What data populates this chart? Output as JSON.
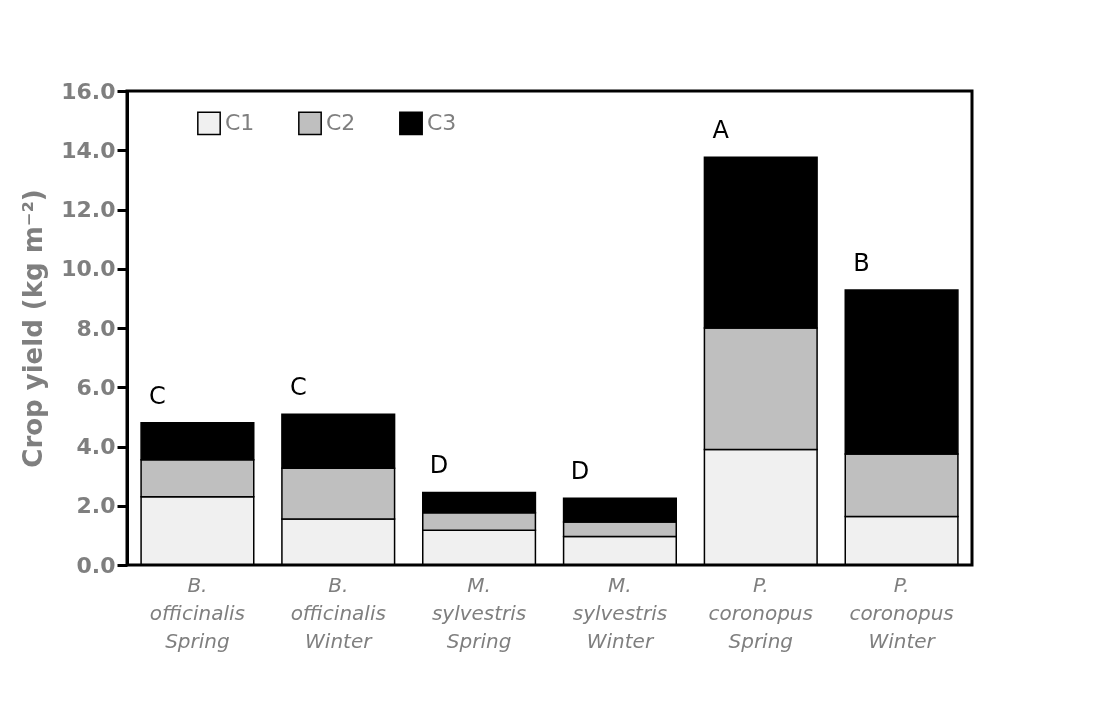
{
  "chart_data": {
    "type": "bar",
    "stacked": true,
    "ylabel": "Crop yield (kg m⁻²)",
    "categories": [
      "B. officinalis Spring",
      "B. officinalis Winter",
      "M. sylvestris Spring",
      "M. sylvestris Winter",
      "P. coronopus Spring",
      "P. coronopus Winter"
    ],
    "series": [
      {
        "name": "C1",
        "color": "#f0f0f0",
        "values": [
          2.3,
          1.55,
          1.17,
          0.96,
          3.9,
          1.64
        ]
      },
      {
        "name": "C2",
        "color": "#bfbfbf",
        "values": [
          1.25,
          1.72,
          0.59,
          0.49,
          4.1,
          2.11
        ]
      },
      {
        "name": "C3",
        "color": "#000000",
        "values": [
          1.25,
          1.82,
          0.69,
          0.8,
          5.76,
          5.53
        ]
      }
    ],
    "ylim": [
      0,
      16
    ],
    "yticks": [
      {
        "value": 0,
        "label": "0.0"
      },
      {
        "value": 2,
        "label": "2.0"
      },
      {
        "value": 4,
        "label": "4.0"
      },
      {
        "value": 6,
        "label": "6.0"
      },
      {
        "value": 8,
        "label": "8.0"
      },
      {
        "value": 10,
        "label": "10.0"
      },
      {
        "value": 12,
        "label": "12.0"
      },
      {
        "value": 14,
        "label": "14.0"
      },
      {
        "value": 16,
        "label": "16.0"
      }
    ],
    "annotations": [
      "C",
      "C",
      "D",
      "D",
      "A",
      "B"
    ],
    "grid": false,
    "legend": "top left"
  }
}
